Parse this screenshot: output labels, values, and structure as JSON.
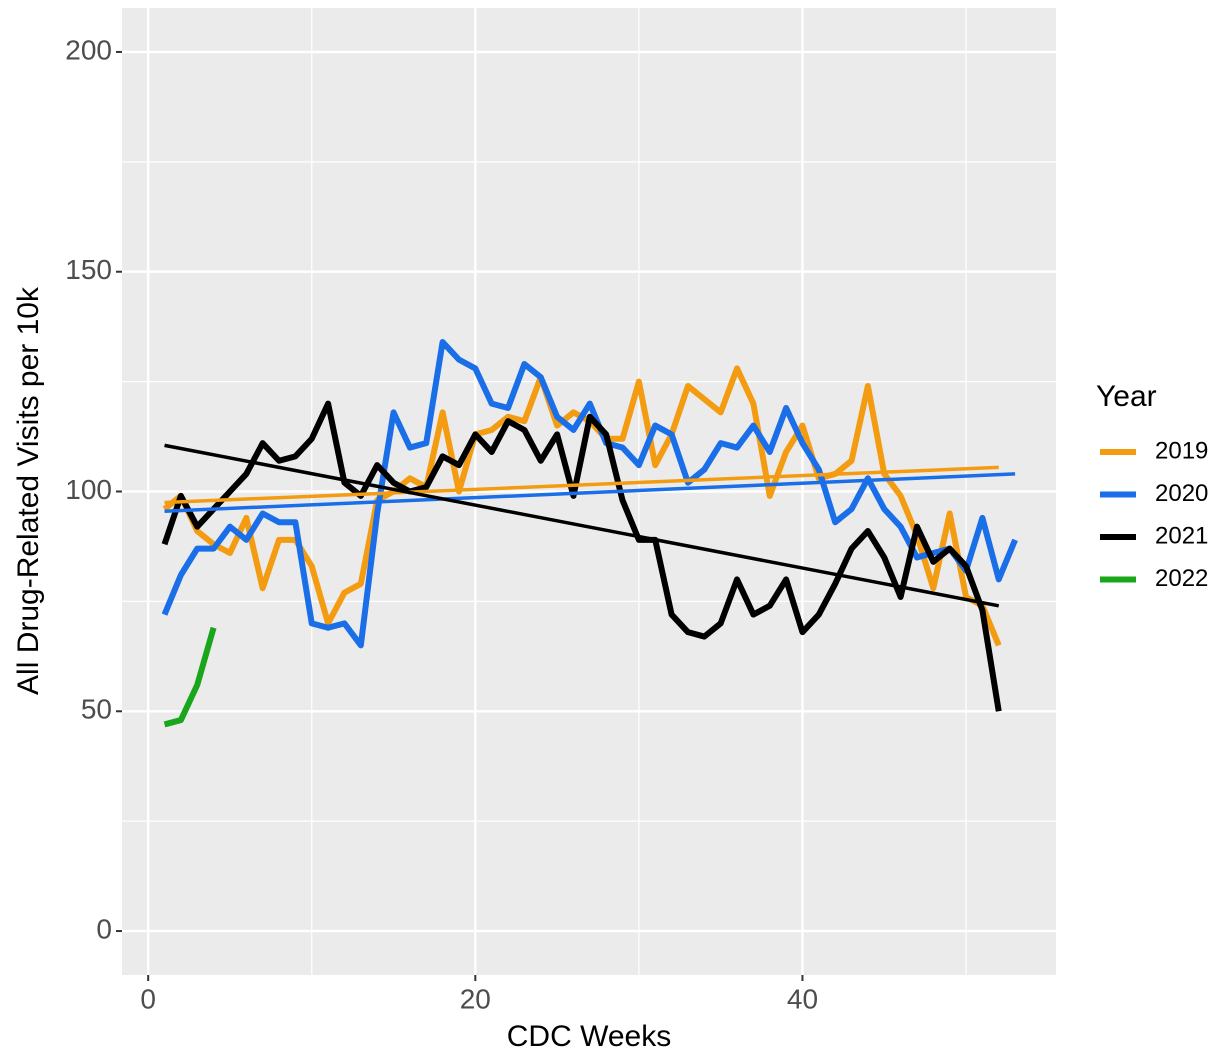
{
  "chart_data": {
    "type": "line",
    "x_label": "CDC Weeks",
    "y_label": "All Drug-Related Visits per 10k",
    "legend_title": "Year",
    "legend": "right",
    "grid": true,
    "xlim": [
      -1.6,
      55.5
    ],
    "xticks": [
      0,
      20,
      40
    ],
    "xminor": [
      10,
      30,
      50
    ],
    "ylim": [
      -10,
      210
    ],
    "yticks": [
      0,
      50,
      100,
      150,
      200
    ],
    "yminor": [
      25,
      75,
      125,
      175
    ],
    "series": [
      {
        "name": "2019",
        "color": "#F39C12",
        "x": [
          1,
          2,
          3,
          4,
          5,
          6,
          7,
          8,
          9,
          10,
          11,
          12,
          13,
          14,
          15,
          16,
          17,
          18,
          19,
          20,
          21,
          22,
          23,
          24,
          25,
          26,
          27,
          28,
          29,
          30,
          31,
          32,
          33,
          34,
          35,
          36,
          37,
          38,
          39,
          40,
          41,
          42,
          43,
          44,
          45,
          46,
          47,
          48,
          49,
          50,
          51,
          52
        ],
        "values": [
          96,
          99,
          91,
          88,
          86,
          94,
          78,
          89,
          89,
          83,
          70,
          77,
          79,
          98,
          100,
          103,
          101,
          118,
          100,
          113,
          114,
          117,
          116,
          126,
          115,
          118,
          116,
          112,
          112,
          125,
          106,
          113,
          124,
          121,
          118,
          128,
          120,
          99,
          109,
          115,
          103,
          104,
          107,
          124,
          104,
          99,
          90,
          78,
          95,
          76,
          74,
          65
        ]
      },
      {
        "name": "2020",
        "color": "#1A6EE8",
        "x": [
          1,
          2,
          3,
          4,
          5,
          6,
          7,
          8,
          9,
          10,
          11,
          12,
          13,
          14,
          15,
          16,
          17,
          18,
          19,
          20,
          21,
          22,
          23,
          24,
          25,
          26,
          27,
          28,
          29,
          30,
          31,
          32,
          33,
          34,
          35,
          36,
          37,
          38,
          39,
          40,
          41,
          42,
          43,
          44,
          45,
          46,
          47,
          48,
          49,
          50,
          51,
          52,
          53
        ],
        "values": [
          72,
          81,
          87,
          87,
          92,
          89,
          95,
          93,
          93,
          70,
          69,
          70,
          65,
          95,
          118,
          110,
          111,
          134,
          130,
          128,
          120,
          119,
          129,
          126,
          117,
          114,
          120,
          111,
          110,
          106,
          115,
          113,
          102,
          105,
          111,
          110,
          115,
          109,
          119,
          111,
          105,
          93,
          96,
          103,
          96,
          92,
          85,
          86,
          87,
          82,
          94,
          80,
          89
        ]
      },
      {
        "name": "2021",
        "color": "#000000",
        "x": [
          1,
          2,
          3,
          4,
          5,
          6,
          7,
          8,
          9,
          10,
          11,
          12,
          13,
          14,
          15,
          16,
          17,
          18,
          19,
          20,
          21,
          22,
          23,
          24,
          25,
          26,
          27,
          28,
          29,
          30,
          31,
          32,
          33,
          34,
          35,
          36,
          37,
          38,
          39,
          40,
          41,
          42,
          43,
          44,
          45,
          46,
          47,
          48,
          49,
          50,
          51,
          52
        ],
        "values": [
          88,
          99,
          92,
          96,
          100,
          104,
          111,
          107,
          108,
          112,
          120,
          102,
          99,
          106,
          102,
          100,
          101,
          108,
          106,
          113,
          109,
          116,
          114,
          107,
          113,
          99,
          117,
          113,
          98,
          89,
          89,
          72,
          68,
          67,
          70,
          80,
          72,
          74,
          80,
          68,
          72,
          79,
          87,
          91,
          85,
          76,
          92,
          84,
          87,
          83,
          73,
          50
        ]
      },
      {
        "name": "2022",
        "color": "#1AA61A",
        "x": [
          1,
          2,
          3,
          4
        ],
        "values": [
          47,
          48,
          56,
          69
        ]
      }
    ],
    "trend_lines": [
      {
        "color": "#F39C12",
        "x": [
          1,
          52
        ],
        "values": [
          97.5,
          105.5
        ]
      },
      {
        "color": "#1A6EE8",
        "x": [
          1,
          53
        ],
        "values": [
          95.5,
          104
        ]
      },
      {
        "color": "#000000",
        "x": [
          1,
          52
        ],
        "values": [
          110.5,
          74
        ]
      }
    ]
  }
}
